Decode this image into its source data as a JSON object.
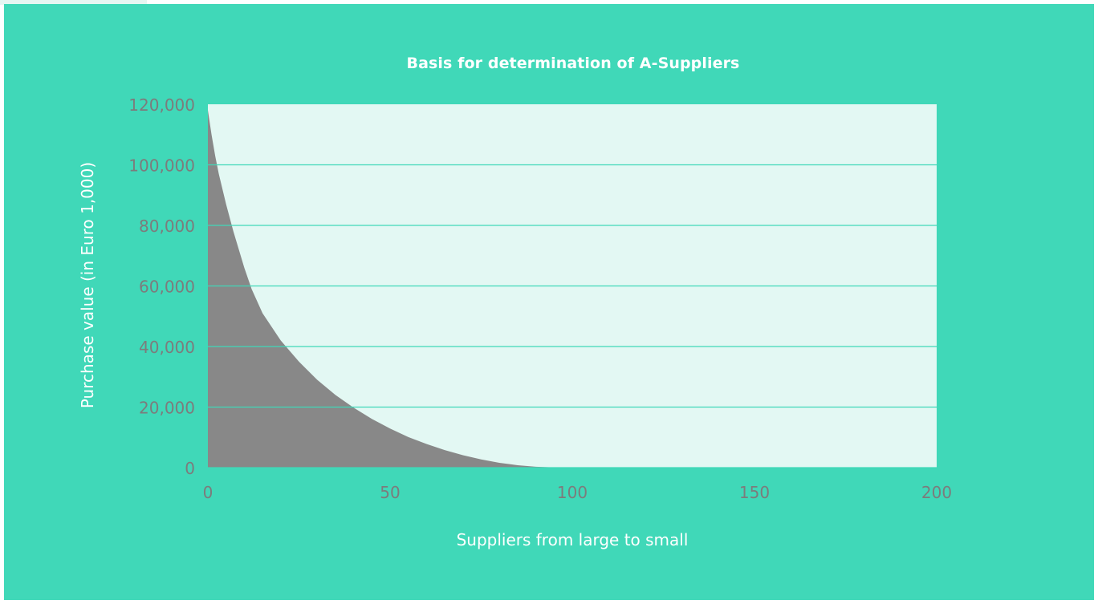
{
  "colors": {
    "background": "#40d8b8",
    "plot_area": "#e3f8f3",
    "area_fill": "#888888",
    "gridline": "#40d8b8",
    "tick_text": "#7c7c7c",
    "label_text": "#ffffff"
  },
  "chart_data": {
    "type": "area",
    "title": "Basis for determination of A-Suppliers",
    "xlabel": "Suppliers from large to small",
    "ylabel": "Purchase value (in Euro 1,000)",
    "xlim": [
      0,
      200
    ],
    "ylim": [
      0,
      120000
    ],
    "xticks": [
      0,
      50,
      100,
      150,
      200
    ],
    "yticks": [
      0,
      20000,
      40000,
      60000,
      80000,
      100000,
      120000
    ],
    "xtick_labels": [
      "0",
      "50",
      "100",
      "150",
      "200"
    ],
    "ytick_labels": [
      "0",
      "20,000",
      "40,000",
      "60,000",
      "80,000",
      "100,000",
      "120,000"
    ],
    "grid": true,
    "legend": "none",
    "series": [
      {
        "x": [
          0,
          1,
          2,
          3,
          5,
          7,
          10,
          12,
          15,
          20,
          25,
          30,
          35,
          40,
          45,
          50,
          55,
          60,
          65,
          70,
          75,
          80,
          85,
          90,
          95,
          100,
          110,
          120,
          130,
          140,
          150,
          160,
          170,
          180,
          190,
          200
        ],
        "values": [
          118000,
          110000,
          103000,
          97000,
          87000,
          78000,
          66000,
          59000,
          51000,
          42000,
          35000,
          29000,
          24000,
          19800,
          16100,
          12900,
          10100,
          7800,
          5800,
          4100,
          2700,
          1600,
          800,
          300,
          80,
          0,
          0,
          0,
          0,
          0,
          0,
          0,
          0,
          0,
          0,
          0
        ]
      }
    ]
  }
}
